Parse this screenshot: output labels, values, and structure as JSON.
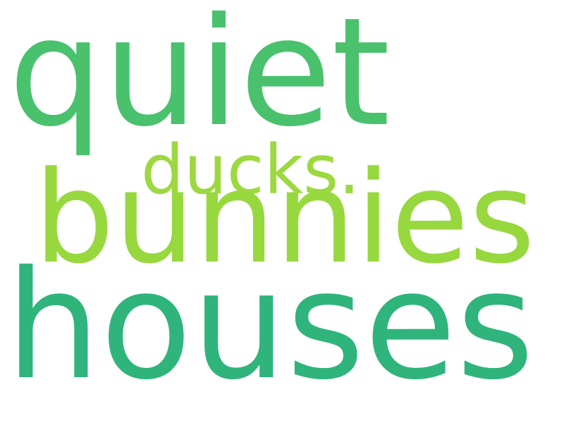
{
  "words": [
    {
      "text": "quiet",
      "color": "#4ac16d"
    },
    {
      "text": "ducks.",
      "color": "#9cd940"
    },
    {
      "text": "bunnies",
      "color": "#97d83f"
    },
    {
      "text": "houses",
      "color": "#2fb47c"
    }
  ]
}
